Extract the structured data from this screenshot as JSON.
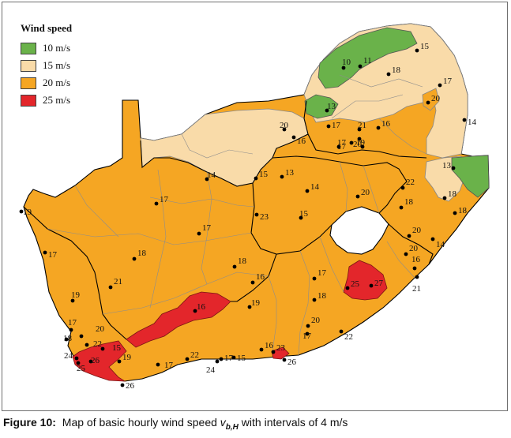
{
  "legend": {
    "title": "Wind speed",
    "items": [
      {
        "label": "10 m/s",
        "color": "#6ab24a"
      },
      {
        "label": "15 m/s",
        "color": "#f9dba9"
      },
      {
        "label": "20 m/s",
        "color": "#f5a623"
      },
      {
        "label": "25 m/s",
        "color": "#e3262b"
      }
    ]
  },
  "caption": {
    "figure": "Figure 10:",
    "text_before": "Map of basic hourly wind speed",
    "symbol": "v",
    "subscript": "b,H",
    "text_after": "with intervals of 4 m/s"
  },
  "station_labels": [
    "15",
    "10",
    "11",
    "18",
    "17",
    "20",
    "14",
    "13",
    "17",
    "21",
    "20",
    "16",
    "17",
    "19",
    "17",
    "20",
    "16",
    "13",
    "15",
    "14",
    "13",
    "14",
    "20",
    "22",
    "18",
    "19",
    "17",
    "23",
    "18",
    "18",
    "17",
    "15",
    "14",
    "20",
    "18",
    "17",
    "18",
    "16",
    "21",
    "16",
    "21",
    "20",
    "17",
    "19",
    "25",
    "27",
    "16",
    "19",
    "18",
    "20",
    "17",
    "22",
    "17",
    "18",
    "20",
    "22",
    "15",
    "24",
    "25",
    "26",
    "19",
    "17",
    "22",
    "24",
    "17",
    "15",
    "16",
    "23",
    "26",
    "26"
  ]
}
